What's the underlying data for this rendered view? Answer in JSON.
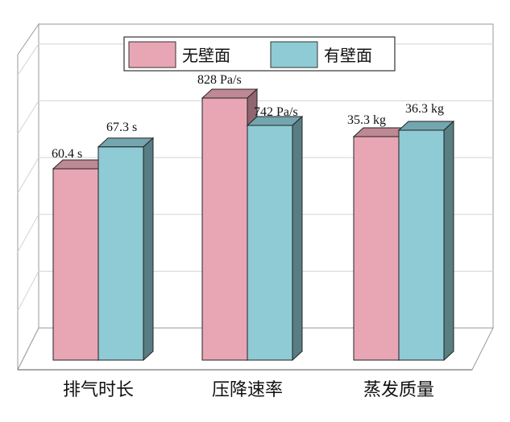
{
  "chart_data": {
    "type": "bar",
    "style": "3d-clustered",
    "categories": [
      "排气时长",
      "压降速率",
      "蒸发质量"
    ],
    "series": [
      {
        "name": "无壁面",
        "color": "#E8A6B5",
        "values": [
          60.4,
          828,
          35.3
        ],
        "labels": [
          "60.4 s",
          "828 Pa/s",
          "35.3 kg"
        ]
      },
      {
        "name": "有壁面",
        "color": "#8ECBD5",
        "values": [
          67.3,
          742,
          36.3
        ],
        "labels": [
          "67.3 s",
          "742 Pa/s",
          "36.3 kg"
        ]
      }
    ],
    "relative_heights": [
      [
        0.595,
        0.663
      ],
      [
        0.815,
        0.73
      ],
      [
        0.695,
        0.715
      ]
    ],
    "title": "",
    "xlabel": "",
    "ylabel": "",
    "grid": true,
    "legend_position": "top-center"
  }
}
